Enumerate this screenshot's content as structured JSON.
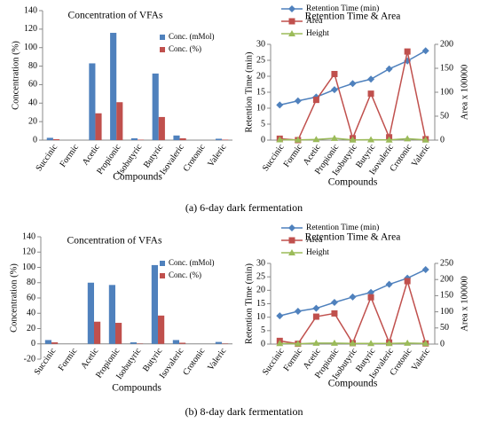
{
  "chart_data": [
    {
      "type": "bar",
      "title": "Concentration of VFAs",
      "y_label": "Concentration (%)",
      "x_label": "Compounds",
      "categories": [
        "Succinic",
        "Formic",
        "Acetic",
        "Propionic",
        "Isobutyric",
        "Butyric",
        "Isovaleric",
        "Crotonic",
        "Valeric"
      ],
      "series": [
        {
          "name": "Conc. (mMol)",
          "color": "#4f81bd",
          "values": [
            2.5,
            0,
            83,
            116,
            2,
            72,
            5,
            0,
            1.5
          ]
        },
        {
          "name": "Conc. (%)",
          "color": "#c0504d",
          "values": [
            1,
            0,
            29,
            41,
            0.5,
            25,
            2,
            0,
            0.5
          ]
        }
      ],
      "ylim": [
        0,
        140
      ],
      "yticks": [
        0,
        20,
        40,
        60,
        80,
        100,
        120,
        140
      ],
      "legend": "top right"
    },
    {
      "type": "line",
      "title": "Retention Time & Area",
      "y_label": "Retention Time (min)",
      "y2_label": "Area x 100000",
      "x_label": "Compounds",
      "categories": [
        "Succinic",
        "Formic",
        "Acetic",
        "Propionic",
        "Isobutyric",
        "Butyric",
        "Isovaleric",
        "Crotonic",
        "Valeric"
      ],
      "series": [
        {
          "name": "Retention Time (min)",
          "color": "#4f81bd",
          "marker": "diamond",
          "values": [
            11,
            12.3,
            13.5,
            15.8,
            17.7,
            19.1,
            22.3,
            24.8,
            28
          ]
        },
        {
          "name": "Area",
          "color": "#c0504d",
          "marker": "square",
          "axis": "y2",
          "values": [
            3,
            0,
            84,
            138,
            4,
            97,
            6,
            185,
            2
          ]
        },
        {
          "name": "Height",
          "color": "#9bbb59",
          "marker": "triangle",
          "axis": "y2",
          "values": [
            1,
            0.5,
            1.5,
            4,
            0.5,
            1,
            0.5,
            3,
            0.5
          ]
        }
      ],
      "ylim": [
        0,
        30
      ],
      "yticks": [
        0,
        5,
        10,
        15,
        20,
        25,
        30
      ],
      "y2lim": [
        0,
        200
      ],
      "y2ticks": [
        0,
        50,
        100,
        150,
        200
      ],
      "legend": "top left"
    },
    {
      "type": "bar",
      "title": "Concentration of VFAs",
      "y_label": "Concentration (%)",
      "x_label": "Compounds",
      "categories": [
        "Succinic",
        "Formic",
        "Acetic",
        "Propionic",
        "Isobutyric",
        "Butyric",
        "Isovaleric",
        "Crotonic",
        "Valeric"
      ],
      "series": [
        {
          "name": "Conc. (mMol)",
          "color": "#4f81bd",
          "values": [
            5,
            0,
            80,
            77,
            2,
            103,
            5,
            0,
            2.5
          ]
        },
        {
          "name": "Conc. (%)",
          "color": "#c0504d",
          "values": [
            2,
            0,
            29,
            27.5,
            0.5,
            37,
            1.5,
            0,
            0.5
          ]
        }
      ],
      "ylim": [
        -20,
        140
      ],
      "yticks": [
        -20,
        0,
        20,
        40,
        60,
        80,
        100,
        120,
        140
      ],
      "legend": "top right"
    },
    {
      "type": "line",
      "title": "Retention Time & Area",
      "y_label": "Retention Time (min)",
      "y2_label": "Area x 100000",
      "x_label": "Compounds",
      "categories": [
        "Succinic",
        "Formic",
        "Acetic",
        "Propionic",
        "Isobutyric",
        "Butyric",
        "Isovaleric",
        "Crotonic",
        "Valeric"
      ],
      "series": [
        {
          "name": "Retention Time (min)",
          "color": "#4f81bd",
          "marker": "diamond",
          "values": [
            10.5,
            12.2,
            13.3,
            15.5,
            17.5,
            19.2,
            22.2,
            24.5,
            27.7
          ]
        },
        {
          "name": "Area",
          "color": "#c0504d",
          "marker": "square",
          "axis": "y2",
          "values": [
            10,
            1,
            85,
            95,
            3,
            145,
            5,
            195,
            2
          ]
        },
        {
          "name": "Height",
          "color": "#9bbb59",
          "marker": "triangle",
          "axis": "y2",
          "values": [
            2,
            1,
            3,
            3,
            2,
            2,
            2,
            3,
            2
          ]
        }
      ],
      "ylim": [
        0,
        30
      ],
      "yticks": [
        0,
        5,
        10,
        15,
        20,
        25,
        30
      ],
      "y2lim": [
        0,
        250
      ],
      "y2ticks": [
        0,
        50,
        100,
        150,
        200,
        250
      ],
      "legend": "top left"
    }
  ],
  "captions": [
    "(a) 6-day dark fermentation",
    "(b) 8-day dark fermentation"
  ]
}
